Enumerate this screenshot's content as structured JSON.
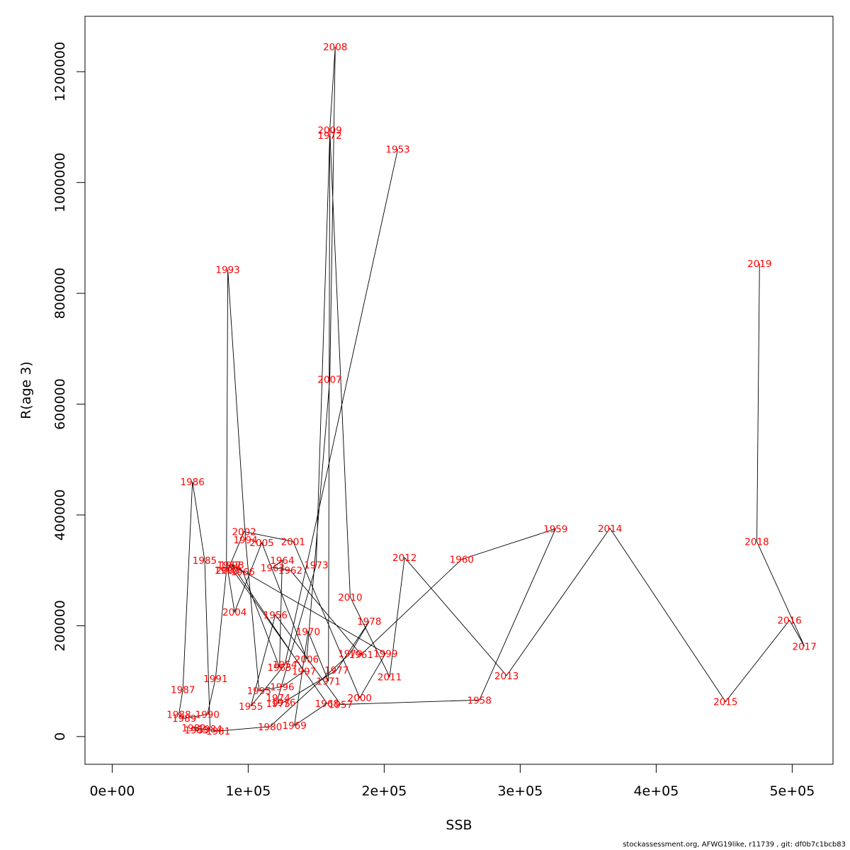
{
  "footer": "stockassessment.org, AFWG19like, r11739 , git: df0b7c1bcb83",
  "chart_data": {
    "type": "line",
    "xlabel": "SSB",
    "ylabel": "R(age 3)",
    "xlim": [
      -20000,
      530000
    ],
    "ylim": [
      -50000,
      1300000
    ],
    "xticks": [
      0,
      100000,
      200000,
      300000,
      400000,
      500000
    ],
    "xtick_labels": [
      "0e+00",
      "1e+05",
      "2e+05",
      "3e+05",
      "4e+05",
      "5e+05"
    ],
    "yticks": [
      0,
      200000,
      400000,
      600000,
      800000,
      1000000,
      1200000
    ],
    "ytick_labels": [
      "0",
      "200000",
      "400000",
      "600000",
      "800000",
      "1000000",
      "1200000"
    ],
    "line_color": "#000000",
    "label_color": "#ff0000",
    "grid": false,
    "points": [
      {
        "year": "1953",
        "x": 210000,
        "y": 1060000
      },
      {
        "year": "1954",
        "x": 127000,
        "y": 130000
      },
      {
        "year": "1955",
        "x": 102000,
        "y": 55000
      },
      {
        "year": "1956",
        "x": 120000,
        "y": 220000
      },
      {
        "year": "1957",
        "x": 168000,
        "y": 58000
      },
      {
        "year": "1958",
        "x": 270000,
        "y": 66000
      },
      {
        "year": "1959",
        "x": 326000,
        "y": 375000
      },
      {
        "year": "1960",
        "x": 257000,
        "y": 320000
      },
      {
        "year": "1961",
        "x": 183000,
        "y": 148000
      },
      {
        "year": "1962",
        "x": 131000,
        "y": 300000
      },
      {
        "year": "1963",
        "x": 118000,
        "y": 305000
      },
      {
        "year": "1964",
        "x": 125000,
        "y": 318000
      },
      {
        "year": "1965",
        "x": 123000,
        "y": 125000
      },
      {
        "year": "1966",
        "x": 96000,
        "y": 298000
      },
      {
        "year": "1967",
        "x": 86000,
        "y": 310000
      },
      {
        "year": "1968",
        "x": 158000,
        "y": 60000
      },
      {
        "year": "1969",
        "x": 134000,
        "y": 20000
      },
      {
        "year": "1970",
        "x": 144000,
        "y": 190000
      },
      {
        "year": "1971",
        "x": 159000,
        "y": 100000
      },
      {
        "year": "1972",
        "x": 160000,
        "y": 1085000
      },
      {
        "year": "1973",
        "x": 150000,
        "y": 310000
      },
      {
        "year": "1974",
        "x": 122000,
        "y": 70000
      },
      {
        "year": "1975",
        "x": 122000,
        "y": 60000
      },
      {
        "year": "1976",
        "x": 126000,
        "y": 62000
      },
      {
        "year": "1977",
        "x": 165000,
        "y": 120000
      },
      {
        "year": "1978",
        "x": 189000,
        "y": 208000
      },
      {
        "year": "1979",
        "x": 175000,
        "y": 150000
      },
      {
        "year": "1980",
        "x": 116000,
        "y": 18000
      },
      {
        "year": "1981",
        "x": 78000,
        "y": 10000
      },
      {
        "year": "1982",
        "x": 60000,
        "y": 16000
      },
      {
        "year": "1983",
        "x": 62000,
        "y": 12000
      },
      {
        "year": "1984",
        "x": 72000,
        "y": 14000
      },
      {
        "year": "1985",
        "x": 68000,
        "y": 318000
      },
      {
        "year": "1986",
        "x": 59000,
        "y": 460000
      },
      {
        "year": "1987",
        "x": 52000,
        "y": 85000
      },
      {
        "year": "1988",
        "x": 49000,
        "y": 40000
      },
      {
        "year": "1989",
        "x": 53000,
        "y": 33000
      },
      {
        "year": "1990",
        "x": 70000,
        "y": 40000
      },
      {
        "year": "1991",
        "x": 76000,
        "y": 105000
      },
      {
        "year": "1992",
        "x": 84000,
        "y": 300000
      },
      {
        "year": "1993",
        "x": 85000,
        "y": 843000
      },
      {
        "year": "1994",
        "x": 98000,
        "y": 355000
      },
      {
        "year": "1995",
        "x": 108000,
        "y": 83000
      },
      {
        "year": "1996",
        "x": 125000,
        "y": 90000
      },
      {
        "year": "1997",
        "x": 141000,
        "y": 118000
      },
      {
        "year": "1998",
        "x": 88000,
        "y": 310000
      },
      {
        "year": "1999",
        "x": 201000,
        "y": 150000
      },
      {
        "year": "2000",
        "x": 182000,
        "y": 70000
      },
      {
        "year": "2001",
        "x": 133000,
        "y": 352000
      },
      {
        "year": "2002",
        "x": 97000,
        "y": 370000
      },
      {
        "year": "2003",
        "x": 85000,
        "y": 300000
      },
      {
        "year": "2004",
        "x": 90000,
        "y": 225000
      },
      {
        "year": "2005",
        "x": 110000,
        "y": 350000
      },
      {
        "year": "2006",
        "x": 143000,
        "y": 140000
      },
      {
        "year": "2007",
        "x": 160000,
        "y": 645000
      },
      {
        "year": "2008",
        "x": 164000,
        "y": 1245000
      },
      {
        "year": "2009",
        "x": 160000,
        "y": 1095000
      },
      {
        "year": "2010",
        "x": 175000,
        "y": 252000
      },
      {
        "year": "2011",
        "x": 204000,
        "y": 108000
      },
      {
        "year": "2012",
        "x": 215000,
        "y": 323000
      },
      {
        "year": "2013",
        "x": 290000,
        "y": 110000
      },
      {
        "year": "2014",
        "x": 366000,
        "y": 376000
      },
      {
        "year": "2015",
        "x": 451000,
        "y": 63000
      },
      {
        "year": "2016",
        "x": 498000,
        "y": 210000
      },
      {
        "year": "2017",
        "x": 509000,
        "y": 163000
      },
      {
        "year": "2018",
        "x": 474000,
        "y": 352000
      },
      {
        "year": "2019",
        "x": 476000,
        "y": 854000
      }
    ]
  }
}
